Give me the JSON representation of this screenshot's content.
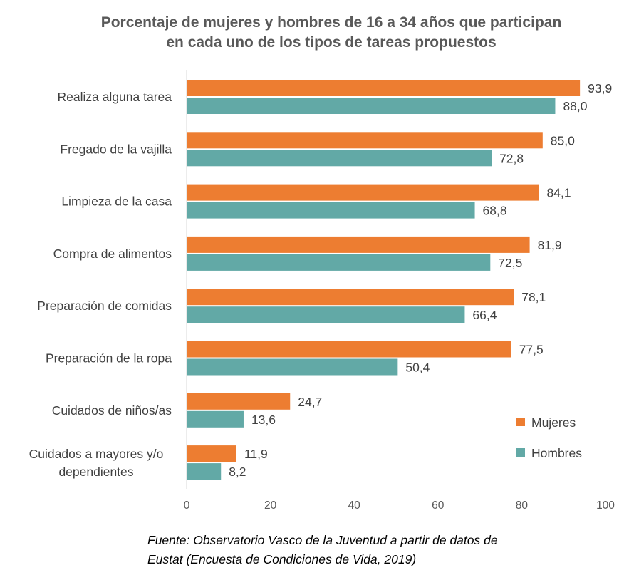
{
  "chart_data": {
    "type": "bar",
    "orientation": "horizontal",
    "title": [
      "Porcentaje de mujeres y hombres de 16 a 34 años que participan",
      "en cada uno de los tipos de tareas propuestos"
    ],
    "categories": [
      "Realiza alguna tarea",
      "Fregado de la vajilla",
      "Limpieza de la casa",
      "Compra de alimentos",
      "Preparación de comidas",
      "Preparación de la ropa",
      "Cuidados de niños/as",
      "Cuidados a mayores y/o dependientes"
    ],
    "series": [
      {
        "name": "Mujeres",
        "color": "#ED7D31",
        "values": [
          93.9,
          85.0,
          84.1,
          81.9,
          78.1,
          77.5,
          24.7,
          11.9
        ]
      },
      {
        "name": "Hombres",
        "color": "#62A9A6",
        "values": [
          88.0,
          72.8,
          68.8,
          72.5,
          66.4,
          50.4,
          13.6,
          8.2
        ]
      }
    ],
    "xlim": [
      0,
      100
    ],
    "xticks": [
      "0",
      "20",
      "40",
      "60",
      "80",
      "100"
    ],
    "grid": false,
    "legend": "bottom-right",
    "data_labels_decimal": ","
  },
  "source": [
    "Fuente: Observatorio Vasco de la Juventud a partir de datos de",
    "Eustat (Encuesta de Condiciones de Vida, 2019)"
  ]
}
